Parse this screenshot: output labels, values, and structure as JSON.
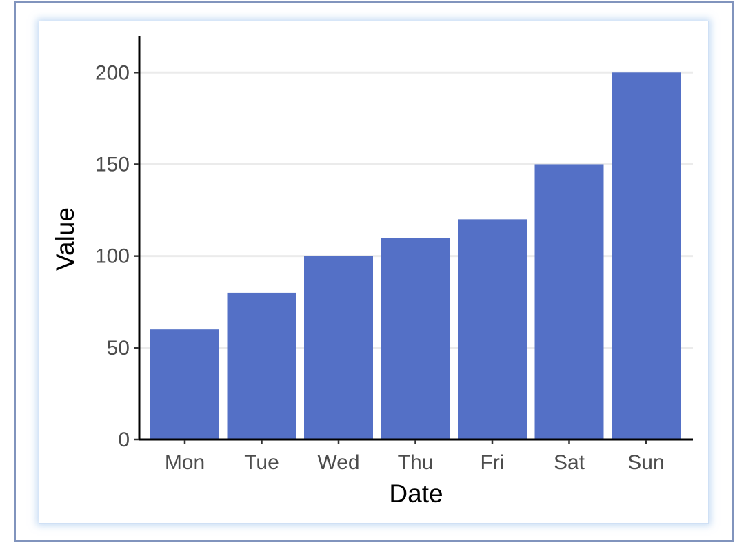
{
  "chart_data": {
    "type": "bar",
    "categories": [
      "Mon",
      "Tue",
      "Wed",
      "Thu",
      "Fri",
      "Sat",
      "Sun"
    ],
    "values": [
      60,
      80,
      100,
      110,
      120,
      150,
      200
    ],
    "xlabel": "Date",
    "ylabel": "Value",
    "ylim": [
      0,
      220
    ],
    "yticks": [
      0,
      50,
      100,
      150,
      200
    ],
    "grid": "horizontal major",
    "bar_color": "#5470c6",
    "grid_color": "#ebebeb",
    "axis_color": "#000000"
  }
}
